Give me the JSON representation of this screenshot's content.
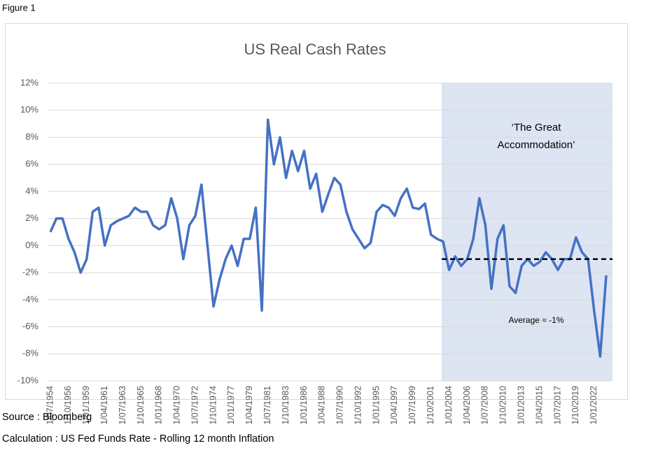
{
  "figure_label": "Figure 1",
  "source": "Source : Bloomberg",
  "calculation": "Calculation :  US Fed Funds Rate - Rolling 12 month Inflation",
  "chart_data": {
    "type": "line",
    "title": "US Real Cash Rates",
    "categories": [
      "1/07/1954",
      null,
      null,
      "1/10/1956",
      null,
      null,
      "1/01/1959",
      null,
      null,
      "1/04/1961",
      null,
      null,
      "1/07/1963",
      null,
      null,
      "1/10/1965",
      null,
      null,
      "1/01/1968",
      null,
      null,
      "1/04/1970",
      null,
      null,
      "1/07/1972",
      null,
      null,
      "1/10/1974",
      null,
      null,
      "1/01/1977",
      null,
      null,
      "1/04/1979",
      null,
      null,
      "1/07/1981",
      null,
      null,
      "1/10/1983",
      null,
      null,
      "1/01/1986",
      null,
      null,
      "1/04/1988",
      null,
      null,
      "1/07/1990",
      null,
      null,
      "1/10/1992",
      null,
      null,
      "1/01/1995",
      null,
      null,
      "1/04/1997",
      null,
      null,
      "1/07/1999",
      null,
      null,
      "1/10/2001",
      null,
      null,
      "1/01/2004",
      null,
      null,
      "1/04/2006",
      null,
      null,
      "1/07/2008",
      null,
      null,
      "1/10/2010",
      null,
      null,
      "1/01/2013",
      null,
      null,
      "1/04/2015",
      null,
      null,
      "1/07/2017",
      null,
      null,
      "1/10/2019",
      null,
      null,
      "1/01/2022",
      null,
      null
    ],
    "series": [
      {
        "color": "#4472c4",
        "values": [
          1,
          2,
          2,
          0.5,
          -0.5,
          -2,
          -1,
          2.5,
          2.8,
          0,
          1.5,
          1.8,
          2,
          2.2,
          2.8,
          2.5,
          2.5,
          1.5,
          1.2,
          1.5,
          3.5,
          2,
          -1,
          1.5,
          2.2,
          4.5,
          0,
          -4.5,
          -2.5,
          -1,
          0,
          -1.5,
          0.5,
          0.5,
          2.8,
          -4.8,
          9.3,
          6,
          8,
          5,
          7,
          5.5,
          7,
          4.2,
          5.3,
          2.5,
          3.8,
          5,
          4.5,
          2.5,
          1.2,
          0.5,
          -0.2,
          0.2,
          2.5,
          3,
          2.8,
          2.2,
          3.5,
          4.2,
          2.8,
          2.7,
          3.1,
          0.8,
          0.5,
          0.3,
          -1.8,
          -0.8,
          -1.5,
          -1,
          0.5,
          3.5,
          1.5,
          -3.2,
          0.5,
          1.5,
          -3,
          -3.5,
          -1.5,
          -1,
          -1.5,
          -1.2,
          -0.5,
          -1,
          -1.8,
          -1,
          -1,
          0.6,
          -0.5,
          -1,
          -4.8,
          -8.2,
          -2.2
        ]
      }
    ],
    "ylim": [
      -10,
      12
    ],
    "yticks": [
      {
        "value": -10,
        "label": "-10%"
      },
      {
        "value": -8,
        "label": "-8%"
      },
      {
        "value": -6,
        "label": "-6%"
      },
      {
        "value": -4,
        "label": "-4%"
      },
      {
        "value": -2,
        "label": "-2%"
      },
      {
        "value": 0,
        "label": "0%"
      },
      {
        "value": 2,
        "label": "2%"
      },
      {
        "value": 4,
        "label": "4%"
      },
      {
        "value": 6,
        "label": "6%"
      },
      {
        "value": 8,
        "label": "8%"
      },
      {
        "value": 10,
        "label": "10%"
      },
      {
        "value": 12,
        "label": "12%"
      }
    ],
    "grid": true,
    "annotation": [
      "‘The Great",
      "Accommodation’"
    ],
    "reference_line": {
      "value": -1,
      "label": "Average ≈ -1%",
      "color": "#000000"
    },
    "shade_color": "#dde4f2"
  }
}
